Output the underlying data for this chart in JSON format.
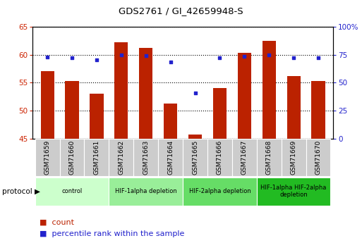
{
  "title": "GDS2761 / GI_42659948-S",
  "samples": [
    "GSM71659",
    "GSM71660",
    "GSM71661",
    "GSM71662",
    "GSM71663",
    "GSM71664",
    "GSM71665",
    "GSM71666",
    "GSM71667",
    "GSM71668",
    "GSM71669",
    "GSM71670"
  ],
  "counts": [
    57.0,
    55.3,
    53.0,
    62.2,
    61.2,
    51.3,
    45.7,
    54.0,
    60.3,
    62.5,
    56.2,
    55.3
  ],
  "percentile": [
    73.0,
    72.0,
    70.5,
    74.5,
    74.0,
    68.5,
    41.0,
    72.0,
    73.5,
    74.5,
    72.5,
    72.0
  ],
  "ylim_left": [
    45,
    65
  ],
  "ylim_right": [
    0,
    100
  ],
  "yticks_left": [
    45,
    50,
    55,
    60,
    65
  ],
  "yticks_right": [
    0,
    25,
    50,
    75,
    100
  ],
  "ytick_labels_right": [
    "0",
    "25",
    "50",
    "75",
    "100%"
  ],
  "bar_color": "#bb2200",
  "dot_color": "#2222cc",
  "bar_bottom": 45,
  "protocol_groups": [
    {
      "label": "control",
      "start": 0,
      "end": 3,
      "color": "#ccffcc"
    },
    {
      "label": "HIF-1alpha depletion",
      "start": 3,
      "end": 6,
      "color": "#99ee99"
    },
    {
      "label": "HIF-2alpha depletion",
      "start": 6,
      "end": 9,
      "color": "#66dd66"
    },
    {
      "label": "HIF-1alpha HIF-2alpha\ndepletion",
      "start": 9,
      "end": 12,
      "color": "#22bb22"
    }
  ],
  "legend_count_label": "count",
  "legend_pct_label": "percentile rank within the sample",
  "protocol_label": "protocol",
  "tick_label_color_left": "#cc2200",
  "tick_label_color_right": "#2222cc",
  "plot_bg_color": "#ffffff",
  "xtick_bg_color": "#cccccc"
}
